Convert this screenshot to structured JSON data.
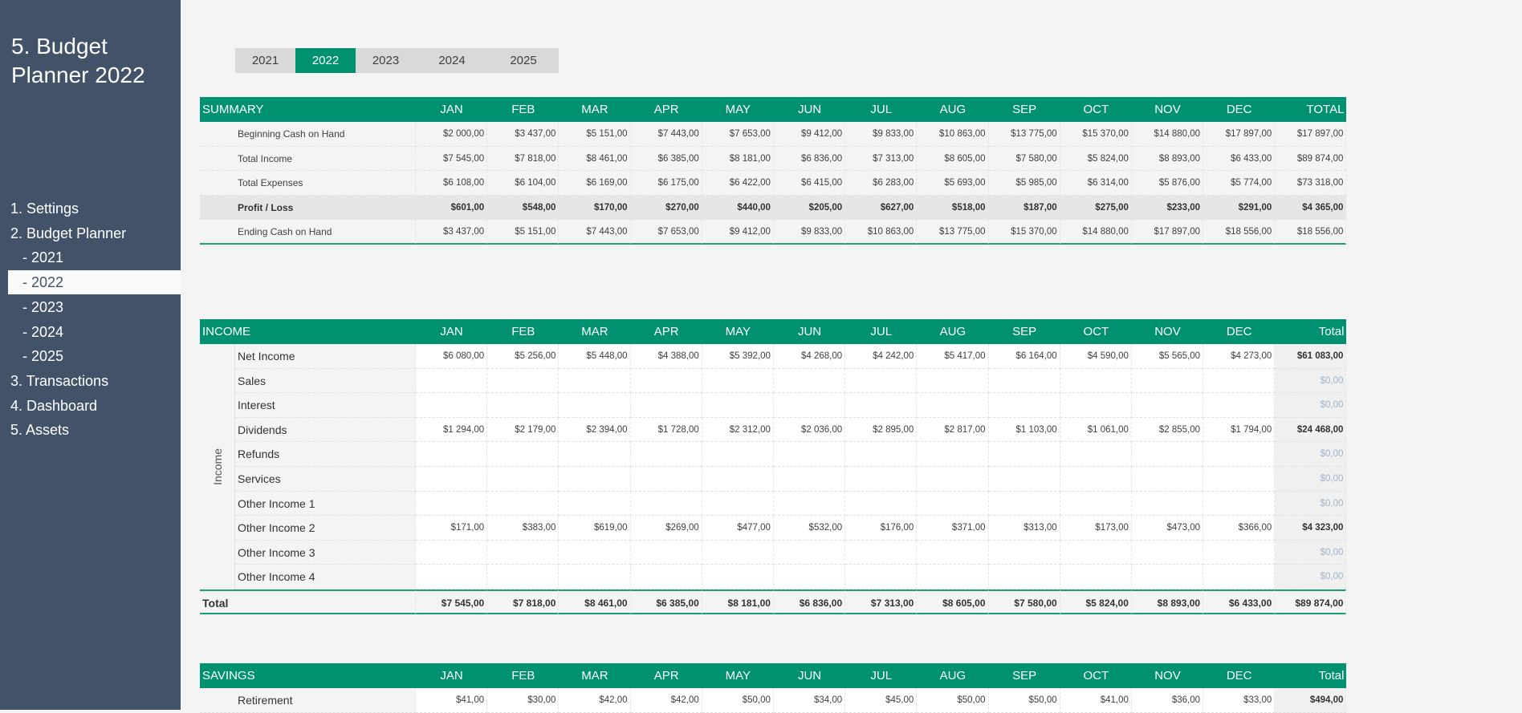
{
  "sidebar": {
    "title": "5. Budget Planner 2022",
    "items": [
      {
        "label": "1. Settings",
        "sub": false,
        "active": false
      },
      {
        "label": "2. Budget Planner",
        "sub": false,
        "active": false
      },
      {
        "label": "- 2021",
        "sub": true,
        "active": false
      },
      {
        "label": "- 2022",
        "sub": true,
        "active": true
      },
      {
        "label": "- 2023",
        "sub": true,
        "active": false
      },
      {
        "label": "- 2024",
        "sub": true,
        "active": false
      },
      {
        "label": "- 2025",
        "sub": true,
        "active": false
      },
      {
        "label": "3. Transactions",
        "sub": false,
        "active": false
      },
      {
        "label": "4. Dashboard",
        "sub": false,
        "active": false
      },
      {
        "label": "5. Assets",
        "sub": false,
        "active": false
      }
    ]
  },
  "years": {
    "selected": "2022",
    "items": [
      "2021",
      "2022",
      "2023",
      "2024",
      "2025"
    ]
  },
  "colors": {
    "accent": "#009270",
    "sidebar": "#425369",
    "zero_total": "#9fb3c8"
  },
  "summary": {
    "title": "SUMMARY",
    "months": [
      "JAN",
      "FEB",
      "MAR",
      "APR",
      "MAY",
      "JUN",
      "JUL",
      "AUG",
      "SEP",
      "OCT",
      "NOV",
      "DEC"
    ],
    "total_label": "TOTAL",
    "rows": [
      {
        "label": "Beginning Cash on Hand",
        "bold": false,
        "values": [
          "$2 000,00",
          "$3 437,00",
          "$5 151,00",
          "$7 443,00",
          "$7 653,00",
          "$9 412,00",
          "$9 833,00",
          "$10 863,00",
          "$13 775,00",
          "$15 370,00",
          "$14 880,00",
          "$17 897,00",
          "$17 897,00"
        ]
      },
      {
        "label": "Total Income",
        "bold": false,
        "values": [
          "$7 545,00",
          "$7 818,00",
          "$8 461,00",
          "$6 385,00",
          "$8 181,00",
          "$6 836,00",
          "$7 313,00",
          "$8 605,00",
          "$7 580,00",
          "$5 824,00",
          "$8 893,00",
          "$6 433,00",
          "$89 874,00"
        ]
      },
      {
        "label": "Total Expenses",
        "bold": false,
        "values": [
          "$6 108,00",
          "$6 104,00",
          "$6 169,00",
          "$6 175,00",
          "$6 422,00",
          "$6 415,00",
          "$6 283,00",
          "$5 693,00",
          "$5 985,00",
          "$6 314,00",
          "$5 876,00",
          "$5 774,00",
          "$73 318,00"
        ]
      },
      {
        "label": "Profit / Loss",
        "bold": true,
        "values": [
          "$601,00",
          "$548,00",
          "$170,00",
          "$270,00",
          "$440,00",
          "$205,00",
          "$627,00",
          "$518,00",
          "$187,00",
          "$275,00",
          "$233,00",
          "$291,00",
          "$4 365,00"
        ]
      },
      {
        "label": "Ending Cash on Hand",
        "bold": false,
        "values": [
          "$3 437,00",
          "$5 151,00",
          "$7 443,00",
          "$7 653,00",
          "$9 412,00",
          "$9 833,00",
          "$10 863,00",
          "$13 775,00",
          "$15 370,00",
          "$14 880,00",
          "$17 897,00",
          "$18 556,00",
          "$18 556,00"
        ]
      }
    ]
  },
  "income": {
    "title": "INCOME",
    "group_label": "Income",
    "months": [
      "JAN",
      "FEB",
      "MAR",
      "APR",
      "MAY",
      "JUN",
      "JUL",
      "AUG",
      "SEP",
      "OCT",
      "NOV",
      "DEC"
    ],
    "total_label": "Total",
    "rows": [
      {
        "label": "Net Income",
        "values": [
          "$6 080,00",
          "$5 256,00",
          "$5 448,00",
          "$4 388,00",
          "$5 392,00",
          "$4 268,00",
          "$4 242,00",
          "$5 417,00",
          "$6 164,00",
          "$4 590,00",
          "$5 565,00",
          "$4 273,00"
        ],
        "total": "$61 083,00"
      },
      {
        "label": "Sales",
        "values": [
          "",
          "",
          "",
          "",
          "",
          "",
          "",
          "",
          "",
          "",
          "",
          ""
        ],
        "total": "$0,00"
      },
      {
        "label": "Interest",
        "values": [
          "",
          "",
          "",
          "",
          "",
          "",
          "",
          "",
          "",
          "",
          "",
          ""
        ],
        "total": "$0,00"
      },
      {
        "label": "Dividends",
        "values": [
          "$1 294,00",
          "$2 179,00",
          "$2 394,00",
          "$1 728,00",
          "$2 312,00",
          "$2 036,00",
          "$2 895,00",
          "$2 817,00",
          "$1 103,00",
          "$1 061,00",
          "$2 855,00",
          "$1 794,00"
        ],
        "total": "$24 468,00"
      },
      {
        "label": "Refunds",
        "values": [
          "",
          "",
          "",
          "",
          "",
          "",
          "",
          "",
          "",
          "",
          "",
          ""
        ],
        "total": "$0,00"
      },
      {
        "label": "Services",
        "values": [
          "",
          "",
          "",
          "",
          "",
          "",
          "",
          "",
          "",
          "",
          "",
          ""
        ],
        "total": "$0,00"
      },
      {
        "label": "Other Income 1",
        "values": [
          "",
          "",
          "",
          "",
          "",
          "",
          "",
          "",
          "",
          "",
          "",
          ""
        ],
        "total": "$0,00"
      },
      {
        "label": "Other Income 2",
        "values": [
          "$171,00",
          "$383,00",
          "$619,00",
          "$269,00",
          "$477,00",
          "$532,00",
          "$176,00",
          "$371,00",
          "$313,00",
          "$173,00",
          "$473,00",
          "$366,00"
        ],
        "total": "$4 323,00"
      },
      {
        "label": "Other Income 3",
        "values": [
          "",
          "",
          "",
          "",
          "",
          "",
          "",
          "",
          "",
          "",
          "",
          ""
        ],
        "total": "$0,00"
      },
      {
        "label": "Other Income 4",
        "values": [
          "",
          "",
          "",
          "",
          "",
          "",
          "",
          "",
          "",
          "",
          "",
          ""
        ],
        "total": "$0,00"
      }
    ],
    "total_row": {
      "label": "Total",
      "values": [
        "$7 545,00",
        "$7 818,00",
        "$8 461,00",
        "$6 385,00",
        "$8 181,00",
        "$6 836,00",
        "$7 313,00",
        "$8 605,00",
        "$7 580,00",
        "$5 824,00",
        "$8 893,00",
        "$6 433,00"
      ],
      "total": "$89 874,00"
    }
  },
  "savings": {
    "title": "SAVINGS",
    "months": [
      "JAN",
      "FEB",
      "MAR",
      "APR",
      "MAY",
      "JUN",
      "JUL",
      "AUG",
      "SEP",
      "OCT",
      "NOV",
      "DEC"
    ],
    "total_label": "Total",
    "rows": [
      {
        "label": "Retirement",
        "values": [
          "$41,00",
          "$30,00",
          "$42,00",
          "$42,00",
          "$50,00",
          "$34,00",
          "$45,00",
          "$50,00",
          "$50,00",
          "$41,00",
          "$36,00",
          "$33,00"
        ],
        "total": "$494,00"
      }
    ]
  }
}
